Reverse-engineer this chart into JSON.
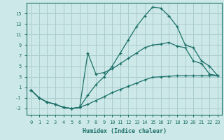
{
  "xlabel": "Humidex (Indice chaleur)",
  "background_color": "#cde8e8",
  "grid_color": "#aacccc",
  "line_color": "#1a7068",
  "xlim": [
    -0.5,
    23.5
  ],
  "ylim": [
    -4.2,
    17
  ],
  "xticks": [
    0,
    1,
    2,
    3,
    4,
    5,
    6,
    7,
    8,
    9,
    10,
    11,
    12,
    13,
    14,
    15,
    16,
    17,
    18,
    19,
    20,
    21,
    22,
    23
  ],
  "yticks": [
    -3,
    -1,
    1,
    3,
    5,
    7,
    9,
    11,
    13,
    15
  ],
  "line1_x": [
    0,
    1,
    2,
    3,
    4,
    5,
    6,
    7,
    8,
    9,
    10,
    11,
    12,
    13,
    14,
    15,
    16,
    17,
    18,
    19,
    20,
    21,
    22,
    23
  ],
  "line1_y": [
    0.5,
    -1.0,
    -1.8,
    -2.2,
    -2.8,
    -3.0,
    -2.8,
    -2.2,
    -1.5,
    -0.8,
    0.0,
    0.6,
    1.2,
    1.8,
    2.4,
    2.9,
    3.0,
    3.1,
    3.2,
    3.2,
    3.2,
    3.2,
    3.2,
    3.2
  ],
  "line2_x": [
    0,
    1,
    2,
    3,
    4,
    5,
    6,
    7,
    8,
    9,
    10,
    11,
    12,
    13,
    14,
    15,
    16,
    17,
    18,
    19,
    20,
    21,
    22,
    23
  ],
  "line2_y": [
    0.5,
    -1.0,
    -1.8,
    -2.2,
    -2.8,
    -3.0,
    -2.8,
    -0.5,
    1.5,
    3.0,
    5.0,
    7.5,
    10.0,
    12.5,
    14.5,
    16.2,
    16.0,
    14.5,
    12.5,
    9.0,
    8.5,
    6.0,
    5.0,
    3.2
  ],
  "line3_x": [
    0,
    1,
    2,
    3,
    4,
    5,
    6,
    7,
    8,
    9,
    10,
    11,
    12,
    13,
    14,
    15,
    16,
    17,
    18,
    19,
    20,
    21,
    22,
    23
  ],
  "line3_y": [
    0.5,
    -1.0,
    -1.8,
    -2.2,
    -2.8,
    -3.0,
    -2.8,
    7.5,
    3.5,
    3.8,
    4.5,
    5.5,
    6.5,
    7.5,
    8.5,
    9.0,
    9.2,
    9.5,
    8.8,
    8.5,
    6.0,
    5.5,
    3.5,
    3.2
  ]
}
